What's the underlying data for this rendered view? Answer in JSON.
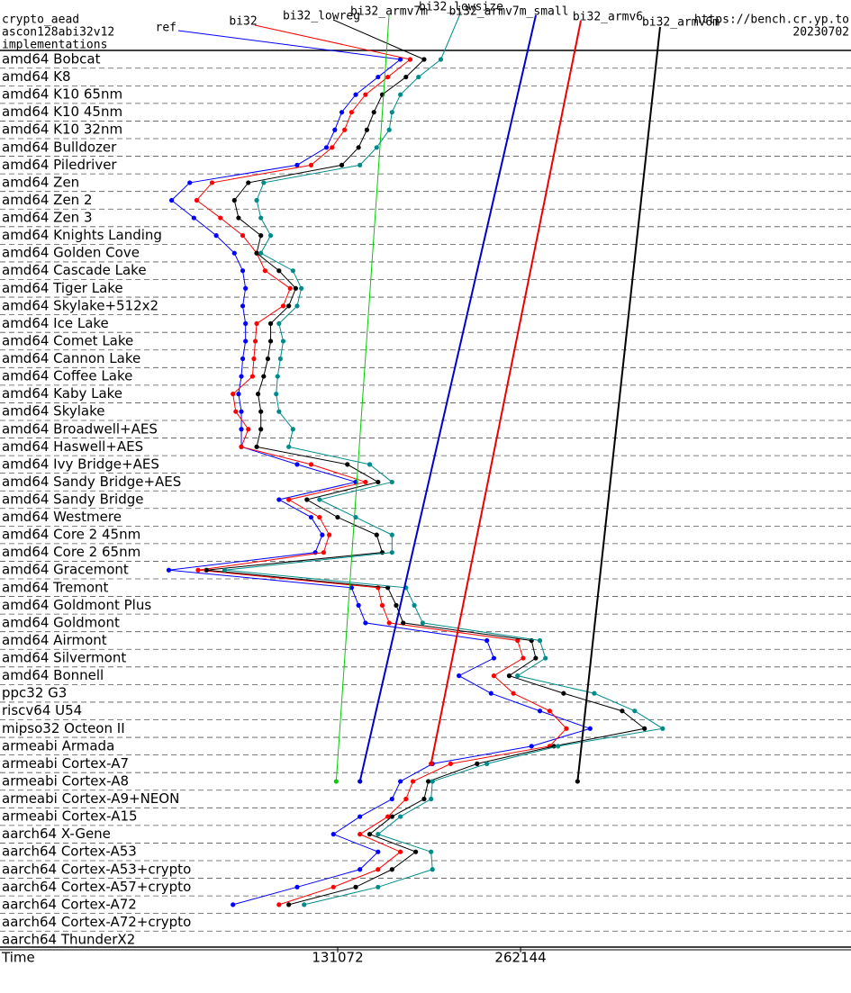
{
  "chart_data": {
    "type": "line",
    "orientation": "horizontal",
    "title": "crypto_aead",
    "subtitle": "ascon128abi32v12",
    "annotations": [
      "implementations",
      "https://bench.cr.yp.to",
      "20230702"
    ],
    "xlabel": "Time",
    "xlim": [
      -111000,
      499000
    ],
    "xticks": [
      131072,
      262144
    ],
    "grid": true,
    "categories": [
      "amd64 Bobcat",
      "amd64 K8",
      "amd64 K10 65nm",
      "amd64 K10 45nm",
      "amd64 K10 32nm",
      "amd64 Bulldozer",
      "amd64 Piledriver",
      "amd64 Zen",
      "amd64 Zen 2",
      "amd64 Zen 3",
      "amd64 Knights Landing",
      "amd64 Golden Cove",
      "amd64 Cascade Lake",
      "amd64 Tiger Lake",
      "amd64 Skylake+512x2",
      "amd64 Ice Lake",
      "amd64 Comet Lake",
      "amd64 Cannon Lake",
      "amd64 Coffee Lake",
      "amd64 Kaby Lake",
      "amd64 Skylake",
      "amd64 Broadwell+AES",
      "amd64 Haswell+AES",
      "amd64 Ivy Bridge+AES",
      "amd64 Sandy Bridge+AES",
      "amd64 Sandy Bridge",
      "amd64 Westmere",
      "amd64 Core 2 45nm",
      "amd64 Core 2 65nm",
      "amd64 Gracemont",
      "amd64 Tremont",
      "amd64 Goldmont Plus",
      "amd64 Goldmont",
      "amd64 Airmont",
      "amd64 Silvermont",
      "amd64 Bonnell",
      "ppc32 G3",
      "riscv64 U54",
      "mipso32 Octeon II",
      "armeabi Armada",
      "armeabi Cortex-A7",
      "armeabi Cortex-A8",
      "armeabi Cortex-A9+NEON",
      "armeabi Cortex-A15",
      "aarch64 X-Gene",
      "aarch64 Cortex-A53",
      "aarch64 Cortex-A53+crypto",
      "aarch64 Cortex-A57+crypto",
      "aarch64 Cortex-A72",
      "aarch64 Cortex-A72+crypto",
      "aarch64 ThunderX2"
    ],
    "series": [
      {
        "name": "ref",
        "color": "#0000ff",
        "values": [
          176000,
          160000,
          144000,
          134000,
          129000,
          123000,
          102000,
          25000,
          12000,
          28000,
          44000,
          57000,
          63000,
          65000,
          63000,
          65000,
          65000,
          63000,
          62000,
          60000,
          62000,
          62000,
          62000,
          102000,
          144000,
          89000,
          112000,
          120000,
          115000,
          10000,
          141000,
          146000,
          151000,
          238000,
          243000,
          218000,
          241000,
          276000,
          312000,
          270000,
          199000,
          176000,
          170000,
          147000,
          128000,
          160000,
          147000,
          102000,
          56000,
          null,
          null
        ]
      },
      {
        "name": "bi32",
        "color": "#ff0000",
        "values": [
          183000,
          167000,
          151000,
          141000,
          136000,
          127000,
          112000,
          41000,
          30000,
          47000,
          63000,
          73000,
          79000,
          97000,
          92000,
          73000,
          72000,
          71000,
          70000,
          56000,
          58000,
          67000,
          62000,
          112000,
          151000,
          96000,
          118000,
          125000,
          121000,
          31000,
          160000,
          163000,
          168000,
          260000,
          264000,
          243000,
          257000,
          283000,
          295000,
          283000,
          212000,
          185000,
          180000,
          167000,
          147000,
          176000,
          160000,
          128000,
          89000,
          null,
          null
        ]
      },
      {
        "name": "bi32_lowreg",
        "color": "#000000",
        "values": [
          193000,
          180000,
          163000,
          157000,
          152000,
          146000,
          134000,
          67000,
          57000,
          60000,
          76000,
          73000,
          89000,
          101000,
          96000,
          83000,
          83000,
          81000,
          78000,
          74000,
          76000,
          76000,
          73000,
          138000,
          160000,
          109000,
          131000,
          159000,
          163000,
          37000,
          167000,
          173000,
          178000,
          270000,
          273000,
          254000,
          293000,
          335000,
          351000,
          286000,
          231000,
          196000,
          193000,
          170000,
          154000,
          187000,
          170000,
          144000,
          96000,
          null,
          null
        ]
      },
      {
        "name": "bi32_armv7m",
        "color": "#00cc00",
        "values": [
          null,
          null,
          null,
          null,
          null,
          null,
          null,
          null,
          null,
          null,
          null,
          null,
          null,
          null,
          null,
          null,
          null,
          null,
          null,
          null,
          null,
          null,
          null,
          null,
          null,
          null,
          null,
          null,
          null,
          null,
          null,
          null,
          null,
          null,
          null,
          null,
          null,
          null,
          null,
          null,
          null,
          130000,
          null,
          null,
          null,
          null,
          null,
          null,
          null,
          null,
          null
        ]
      },
      {
        "name": "bi32_lowsize",
        "color": "#008b8b",
        "values": [
          205000,
          189000,
          176000,
          170000,
          168000,
          159000,
          147000,
          78000,
          73000,
          76000,
          83000,
          76000,
          99000,
          105000,
          102000,
          89000,
          92000,
          90000,
          88000,
          87000,
          89000,
          99000,
          96000,
          154000,
          170000,
          118000,
          144000,
          170000,
          170000,
          50000,
          180000,
          186000,
          192000,
          276000,
          280000,
          260000,
          315000,
          344000,
          364000,
          289000,
          238000,
          199000,
          198000,
          176000,
          160000,
          198000,
          199000,
          160000,
          107000,
          null,
          null
        ]
      },
      {
        "name": "bi32_armv7m_small",
        "color": "#0000cc",
        "values": [
          null,
          null,
          null,
          null,
          null,
          null,
          null,
          null,
          null,
          null,
          null,
          null,
          null,
          null,
          null,
          null,
          null,
          null,
          null,
          null,
          null,
          null,
          null,
          null,
          null,
          null,
          null,
          null,
          null,
          null,
          null,
          null,
          null,
          null,
          null,
          null,
          null,
          null,
          null,
          null,
          null,
          147000,
          null,
          null,
          null,
          null,
          null,
          null,
          null,
          null,
          null
        ]
      },
      {
        "name": "bi32_armv6",
        "color": "#ee0000",
        "values": [
          null,
          null,
          null,
          null,
          null,
          null,
          null,
          null,
          null,
          null,
          null,
          null,
          null,
          null,
          null,
          null,
          null,
          null,
          null,
          null,
          null,
          null,
          null,
          null,
          null,
          null,
          null,
          null,
          null,
          null,
          null,
          null,
          null,
          null,
          null,
          null,
          null,
          null,
          null,
          null,
          198000,
          null,
          null,
          null,
          null,
          null,
          null,
          null,
          null,
          null,
          null
        ]
      },
      {
        "name": "bi32_armv6m",
        "color": "#000000",
        "values": [
          null,
          null,
          null,
          null,
          null,
          null,
          null,
          null,
          null,
          null,
          null,
          null,
          null,
          null,
          null,
          null,
          null,
          null,
          null,
          null,
          null,
          null,
          null,
          null,
          null,
          null,
          null,
          null,
          null,
          null,
          null,
          null,
          null,
          null,
          null,
          null,
          null,
          null,
          null,
          null,
          null,
          303000,
          null,
          null,
          null,
          null,
          null,
          null,
          null,
          null,
          null
        ]
      }
    ]
  }
}
